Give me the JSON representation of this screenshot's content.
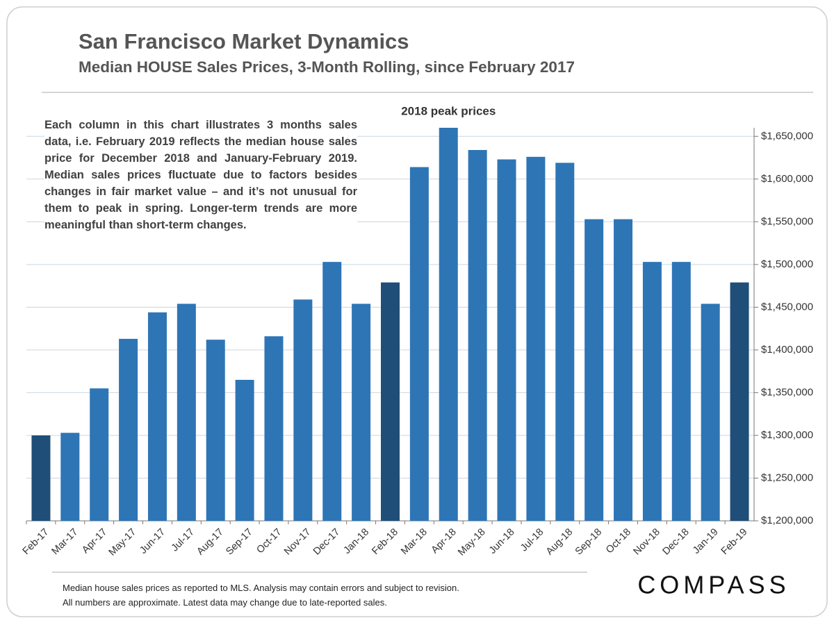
{
  "title": "San Francisco Market Dynamics",
  "subtitle": "Median HOUSE Sales Prices, 3-Month Rolling, since February 2017",
  "note": "Each column in this chart illustrates 3 months sales data, i.e. February 2019 reflects the median house sales price for December 2018 and January-February 2019. Median sales prices fluctuate due to factors besides changes in fair market value – and it’s not unusual for them to peak in spring. Longer-term trends are more meaningful than short-term changes.",
  "footer": [
    "Median house sales prices as reported to MLS.  Analysis may contain errors and subject to revision.",
    "All numbers are approximate. Latest data may change due to late-reported sales."
  ],
  "logo": "COMPASS",
  "chart_data": {
    "type": "bar",
    "annotation": "2018 peak prices",
    "categories": [
      "Feb-17",
      "Mar-17",
      "Apr-17",
      "May-17",
      "Jun-17",
      "Jul-17",
      "Aug-17",
      "Sep-17",
      "Oct-17",
      "Nov-17",
      "Dec-17",
      "Jan-18",
      "Feb-18",
      "Mar-18",
      "Apr-18",
      "May-18",
      "Jun-18",
      "Jul-18",
      "Aug-18",
      "Sep-18",
      "Oct-18",
      "Nov-18",
      "Dec-18",
      "Jan-19",
      "Feb-19"
    ],
    "values": [
      1300000,
      1303000,
      1355000,
      1413000,
      1444000,
      1454000,
      1412000,
      1365000,
      1416000,
      1459000,
      1503000,
      1454000,
      1479000,
      1614000,
      1660000,
      1634000,
      1623000,
      1626000,
      1619000,
      1553000,
      1553000,
      1503000,
      1503000,
      1454000,
      1479000
    ],
    "colors": [
      "#1f4e79",
      "#2e75b6",
      "#2e75b6",
      "#2e75b6",
      "#2e75b6",
      "#2e75b6",
      "#2e75b6",
      "#2e75b6",
      "#2e75b6",
      "#2e75b6",
      "#2e75b6",
      "#2e75b6",
      "#1f4e79",
      "#2e75b6",
      "#2e75b6",
      "#2e75b6",
      "#2e75b6",
      "#2e75b6",
      "#2e75b6",
      "#2e75b6",
      "#2e75b6",
      "#2e75b6",
      "#2e75b6",
      "#2e75b6",
      "#1f4e79"
    ],
    "ylim": [
      1200000,
      1660000
    ],
    "yticks": [
      {
        "value": 1200000,
        "label": "$1,200,000"
      },
      {
        "value": 1250000,
        "label": "$1,250,000"
      },
      {
        "value": 1300000,
        "label": "$1,300,000"
      },
      {
        "value": 1350000,
        "label": "$1,350,000"
      },
      {
        "value": 1400000,
        "label": "$1,400,000"
      },
      {
        "value": 1450000,
        "label": "$1,450,000"
      },
      {
        "value": 1500000,
        "label": "$1,500,000"
      },
      {
        "value": 1550000,
        "label": "$1,550,000"
      },
      {
        "value": 1600000,
        "label": "$1,600,000"
      },
      {
        "value": 1650000,
        "label": "$1,650,000"
      }
    ],
    "grid": true
  }
}
